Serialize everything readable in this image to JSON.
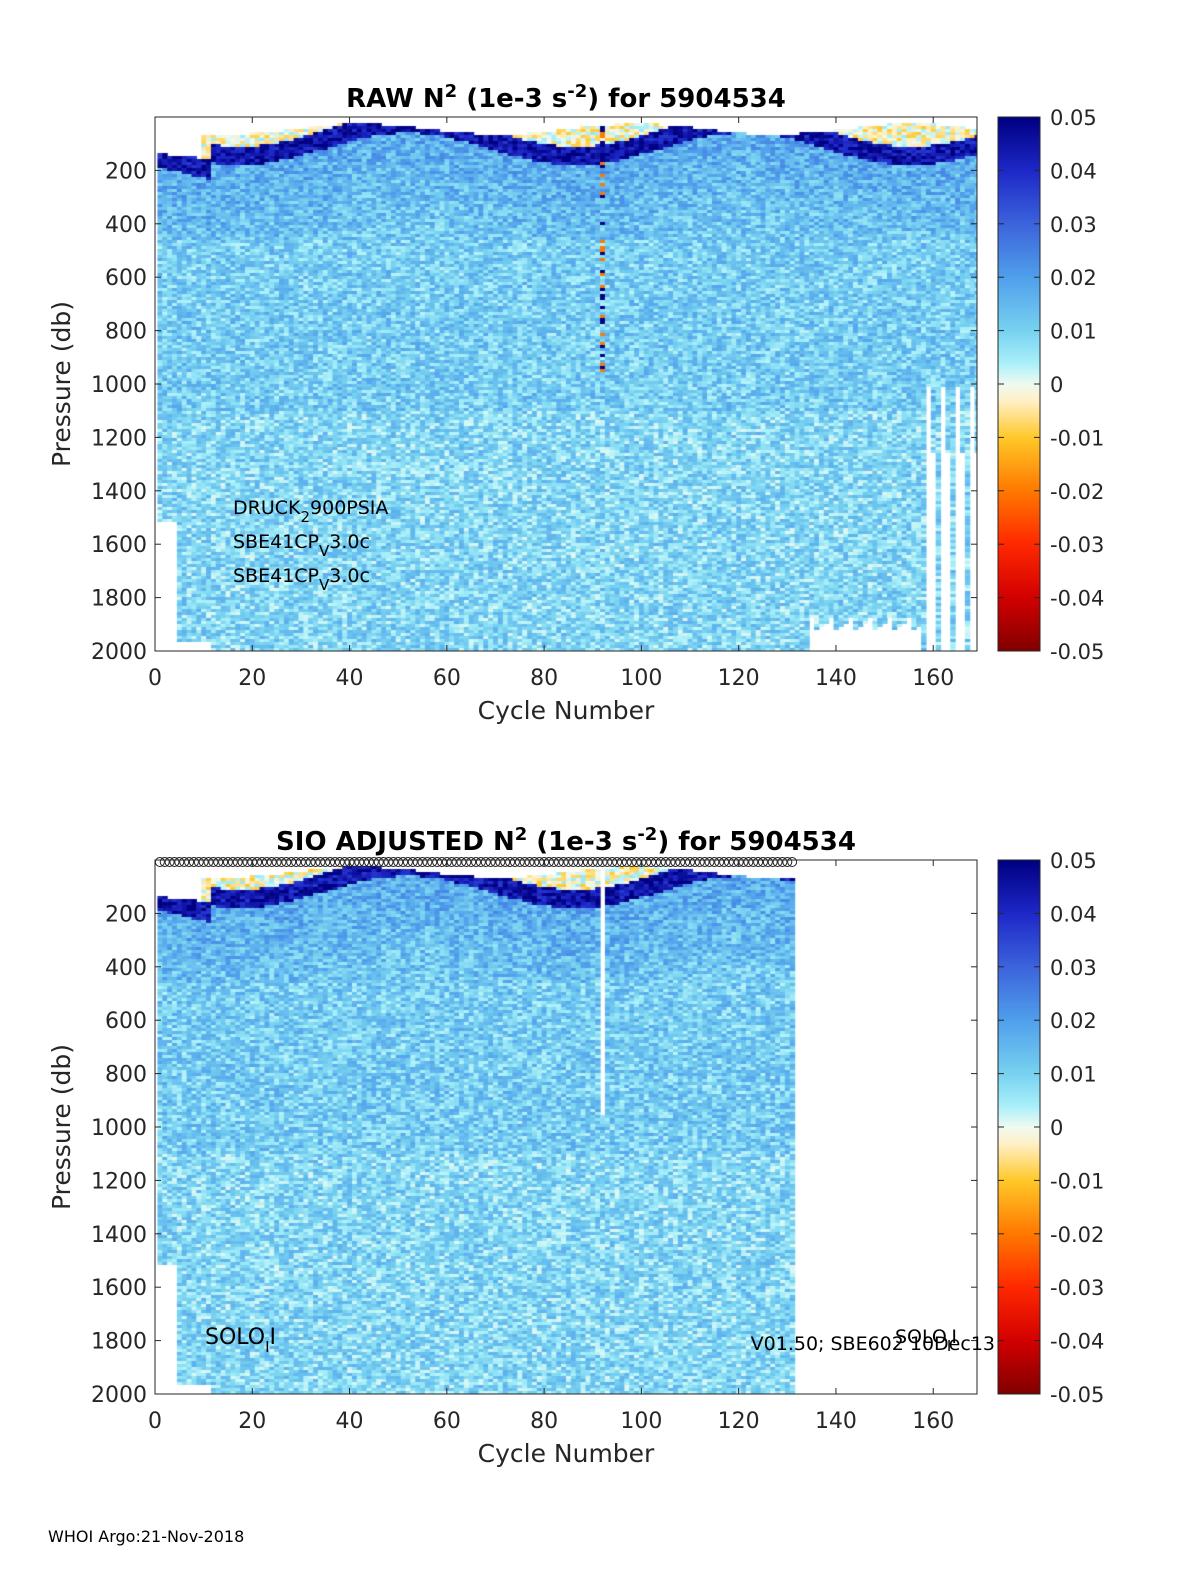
{
  "chart_data": [
    {
      "type": "heatmap",
      "title": "RAW N² (1e-3 s⁻²) for 5904534",
      "title_parts": {
        "lead": "RAW N",
        "sup1": "2",
        "mid": " (1e-3 s",
        "sup2": "-2",
        "tail": ") for 5904534"
      },
      "xlabel": "Cycle Number",
      "ylabel": "Pressure (db)",
      "xlim": [
        0,
        169
      ],
      "ylim": [
        0,
        2000
      ],
      "y_reversed": true,
      "xticks": [
        "0",
        "20",
        "40",
        "60",
        "80",
        "100",
        "120",
        "140",
        "160"
      ],
      "yticks": [
        "200",
        "400",
        "600",
        "800",
        "1000",
        "1200",
        "1400",
        "1600",
        "1800",
        "2000"
      ],
      "clim": [
        -0.05,
        0.05
      ],
      "colorbar_ticks": [
        "0.05",
        "0.04",
        "0.03",
        "0.02",
        "0.01",
        "0",
        "-0.01",
        "-0.02",
        "-0.03",
        "-0.04",
        "-0.05"
      ],
      "data_cycles": [
        1,
        169
      ],
      "annotations": [
        {
          "text": "DRUCK",
          "sub": "2",
          "text2": "900PSIA"
        },
        {
          "text": "SBE41CP",
          "sub": "V",
          "text2": "3.0c"
        },
        {
          "text": "SBE41CP",
          "sub": "V",
          "text2": "3.0c"
        }
      ]
    },
    {
      "type": "heatmap",
      "title": "SIO ADJUSTED N² (1e-3 s⁻²) for 5904534",
      "title_parts": {
        "lead": "SIO  ADJUSTED N",
        "sup1": "2",
        "mid": " (1e-3 s",
        "sup2": "-2",
        "tail": ") for 5904534"
      },
      "xlabel": "Cycle Number",
      "ylabel": "Pressure (db)",
      "xlim": [
        0,
        169
      ],
      "ylim": [
        0,
        2000
      ],
      "y_reversed": true,
      "xticks": [
        "0",
        "20",
        "40",
        "60",
        "80",
        "100",
        "120",
        "140",
        "160"
      ],
      "yticks": [
        "200",
        "400",
        "600",
        "800",
        "1000",
        "1200",
        "1400",
        "1600",
        "1800",
        "2000"
      ],
      "clim": [
        -0.05,
        0.05
      ],
      "colorbar_ticks": [
        "0.05",
        "0.04",
        "0.03",
        "0.02",
        "0.01",
        "0",
        "-0.01",
        "-0.02",
        "-0.03",
        "-0.04",
        "-0.05"
      ],
      "data_cycles": [
        1,
        131
      ],
      "annotations": [
        {
          "text": "SOLO",
          "sub": "I",
          "text2": "I"
        },
        {
          "text": "V01.50; SBE602 10Dec13"
        },
        {
          "text": "SOLO",
          "sub": "I",
          "text2": "I"
        }
      ]
    }
  ],
  "footer": "WHOI Argo:21-Nov-2018"
}
